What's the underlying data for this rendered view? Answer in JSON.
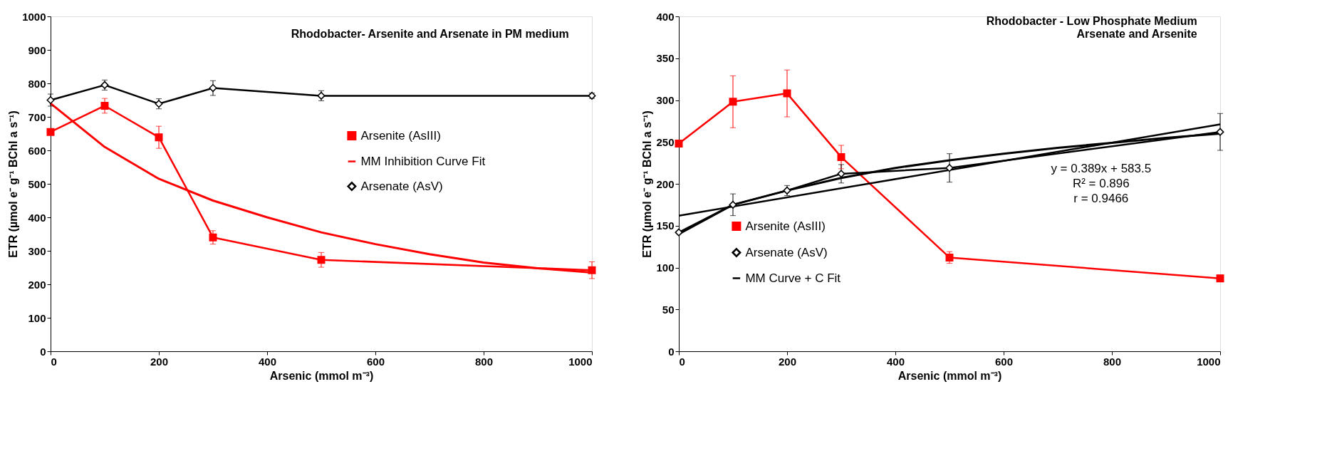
{
  "chart_data": [
    {
      "type": "line",
      "title": "Rhodobacter- Arsenite and Arsenate in PM medium",
      "xlabel": "Arsenic (mmol m⁻³)",
      "ylabel": "ETR (µmol e⁻ g⁻¹ BChl a s⁻¹)",
      "xlim": [
        0,
        1000
      ],
      "xticks": [
        0,
        200,
        400,
        600,
        800,
        1000
      ],
      "ylim": [
        0,
        1000
      ],
      "yticks": [
        0,
        100,
        200,
        300,
        400,
        500,
        600,
        700,
        800,
        900,
        1000
      ],
      "grid": false,
      "legend": "right",
      "series": [
        {
          "name": "Arsenite (AsIII)",
          "color": "#ff0000",
          "marker": "square",
          "x": [
            0,
            100,
            200,
            300,
            500,
            1000
          ],
          "values": [
            655,
            733,
            639,
            340,
            273,
            242
          ],
          "errors": [
            null,
            22,
            33,
            20,
            22,
            25
          ]
        },
        {
          "name": "MM Inhibition Curve Fit",
          "color": "#ff0000",
          "marker": "none",
          "x": [
            0,
            100,
            200,
            300,
            400,
            500,
            600,
            700,
            800,
            900,
            1000
          ],
          "values": [
            740,
            610,
            515,
            450,
            400,
            355,
            320,
            290,
            265,
            248,
            235
          ]
        },
        {
          "name": "Arsenate (AsV)",
          "color": "#000000",
          "marker": "diamond",
          "x": [
            0,
            100,
            200,
            300,
            500,
            1000
          ],
          "values": [
            750,
            795,
            739,
            786,
            763,
            763
          ],
          "errors": [
            18,
            15,
            15,
            22,
            15,
            8
          ]
        }
      ]
    },
    {
      "type": "line",
      "title": "Rhodobacter - Low Phosphate Medium\nArsenate and Arsenite",
      "xlabel": "Arsenic (mmol m⁻³)",
      "ylabel": "ETR (µmol e⁻ g⁻¹ BChl a s⁻¹)",
      "xlim": [
        0,
        1000
      ],
      "xticks": [
        0,
        200,
        400,
        600,
        800,
        1000
      ],
      "ylim": [
        0,
        400
      ],
      "yticks": [
        0,
        50,
        100,
        150,
        200,
        250,
        300,
        350,
        400
      ],
      "grid": false,
      "legend": "bottom left",
      "annotations": [
        "y = 0.389x + 583.5",
        "R² = 0.896",
        "r = 0.9466"
      ],
      "series": [
        {
          "name": "Arsenite (AsIII)",
          "color": "#ff0000",
          "marker": "square",
          "x": [
            0,
            100,
            200,
            300,
            500,
            1000
          ],
          "values": [
            248,
            298,
            308,
            232,
            112,
            87
          ],
          "errors": [
            null,
            31,
            28,
            14,
            7,
            4
          ]
        },
        {
          "name": "Arsenate (AsV)",
          "color": "#000000",
          "marker": "diamond",
          "x": [
            0,
            100,
            200,
            300,
            500,
            1000
          ],
          "values": [
            142,
            175,
            192,
            212,
            219,
            262
          ],
          "errors": [
            null,
            13,
            6,
            11,
            17,
            22
          ]
        },
        {
          "name": "MM Curve + C Fit",
          "color": "#000000",
          "marker": "none",
          "x": [
            0,
            100,
            200,
            300,
            400,
            500,
            600,
            700,
            800,
            900,
            1000
          ],
          "values": [
            140,
            175,
            192,
            207,
            219,
            228,
            236,
            243,
            249,
            255,
            260
          ]
        },
        {
          "color": "#000000",
          "marker": "none",
          "x": [
            0,
            1000
          ],
          "values": [
            162,
            271
          ]
        }
      ]
    }
  ]
}
